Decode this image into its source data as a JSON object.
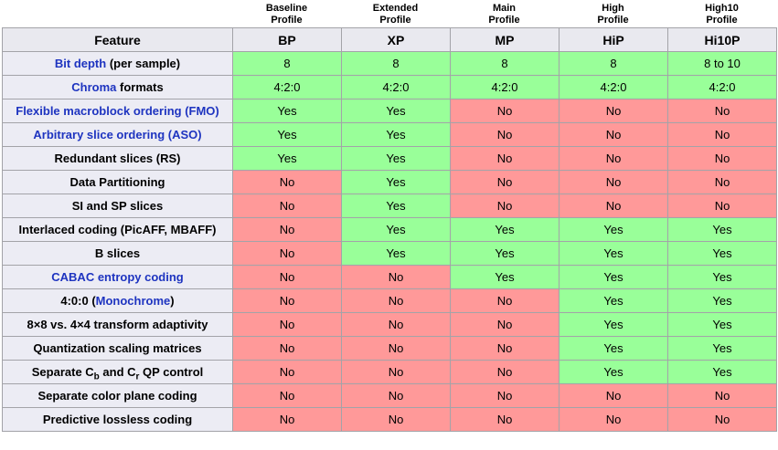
{
  "colors": {
    "yes_bg": "#99ff99",
    "no_bg": "#ff9999",
    "header_bg": "#e9e9ef",
    "feature_bg": "#ececf4",
    "border": "#a3a3a8",
    "link": "#1e34c0"
  },
  "column_labels": [
    {
      "line1": "Baseline",
      "line2": "Profile"
    },
    {
      "line1": "Extended",
      "line2": "Profile"
    },
    {
      "line1": "Main",
      "line2": "Profile"
    },
    {
      "line1": "High",
      "line2": "Profile"
    },
    {
      "line1": "High10",
      "line2": "Profile"
    }
  ],
  "table": {
    "header": {
      "feature": "Feature",
      "columns": [
        "BP",
        "XP",
        "MP",
        "HiP",
        "Hi10P"
      ]
    },
    "rows": [
      {
        "feature": [
          {
            "text": "Bit depth",
            "link": true
          },
          {
            "text": " (per sample)"
          }
        ],
        "values": [
          "8",
          "8",
          "8",
          "8",
          "8 to 10"
        ],
        "kinds": [
          "yes",
          "yes",
          "yes",
          "yes",
          "yes"
        ]
      },
      {
        "feature": [
          {
            "text": "Chroma",
            "link": true
          },
          {
            "text": " formats"
          }
        ],
        "values": [
          "4:2:0",
          "4:2:0",
          "4:2:0",
          "4:2:0",
          "4:2:0"
        ],
        "kinds": [
          "yes",
          "yes",
          "yes",
          "yes",
          "yes"
        ]
      },
      {
        "feature": [
          {
            "text": "Flexible macroblock ordering (FMO)",
            "link": true
          }
        ],
        "values": [
          "Yes",
          "Yes",
          "No",
          "No",
          "No"
        ],
        "kinds": [
          "yes",
          "yes",
          "no",
          "no",
          "no"
        ]
      },
      {
        "feature": [
          {
            "text": "Arbitrary slice ordering (ASO)",
            "link": true
          }
        ],
        "values": [
          "Yes",
          "Yes",
          "No",
          "No",
          "No"
        ],
        "kinds": [
          "yes",
          "yes",
          "no",
          "no",
          "no"
        ]
      },
      {
        "feature": [
          {
            "text": "Redundant slices (RS)"
          }
        ],
        "values": [
          "Yes",
          "Yes",
          "No",
          "No",
          "No"
        ],
        "kinds": [
          "yes",
          "yes",
          "no",
          "no",
          "no"
        ]
      },
      {
        "feature": [
          {
            "text": "Data Partitioning"
          }
        ],
        "values": [
          "No",
          "Yes",
          "No",
          "No",
          "No"
        ],
        "kinds": [
          "no",
          "yes",
          "no",
          "no",
          "no"
        ]
      },
      {
        "feature": [
          {
            "text": "SI and SP slices"
          }
        ],
        "values": [
          "No",
          "Yes",
          "No",
          "No",
          "No"
        ],
        "kinds": [
          "no",
          "yes",
          "no",
          "no",
          "no"
        ]
      },
      {
        "feature": [
          {
            "text": "Interlaced coding (PicAFF, MBAFF)"
          }
        ],
        "values": [
          "No",
          "Yes",
          "Yes",
          "Yes",
          "Yes"
        ],
        "kinds": [
          "no",
          "yes",
          "yes",
          "yes",
          "yes"
        ]
      },
      {
        "feature": [
          {
            "text": "B slices"
          }
        ],
        "values": [
          "No",
          "Yes",
          "Yes",
          "Yes",
          "Yes"
        ],
        "kinds": [
          "no",
          "yes",
          "yes",
          "yes",
          "yes"
        ]
      },
      {
        "feature": [
          {
            "text": "CABAC entropy coding",
            "link": true
          }
        ],
        "values": [
          "No",
          "No",
          "Yes",
          "Yes",
          "Yes"
        ],
        "kinds": [
          "no",
          "no",
          "yes",
          "yes",
          "yes"
        ]
      },
      {
        "feature": [
          {
            "text": "4:0:0 ("
          },
          {
            "text": "Monochrome",
            "link": true
          },
          {
            "text": ")"
          }
        ],
        "values": [
          "No",
          "No",
          "No",
          "Yes",
          "Yes"
        ],
        "kinds": [
          "no",
          "no",
          "no",
          "yes",
          "yes"
        ]
      },
      {
        "feature": [
          {
            "text": "8×8 vs. 4×4 transform adaptivity"
          }
        ],
        "values": [
          "No",
          "No",
          "No",
          "Yes",
          "Yes"
        ],
        "kinds": [
          "no",
          "no",
          "no",
          "yes",
          "yes"
        ]
      },
      {
        "feature": [
          {
            "text": "Quantization scaling matrices"
          }
        ],
        "values": [
          "No",
          "No",
          "No",
          "Yes",
          "Yes"
        ],
        "kinds": [
          "no",
          "no",
          "no",
          "yes",
          "yes"
        ]
      },
      {
        "feature": [
          {
            "text": "Separate C"
          },
          {
            "text": "b",
            "sub": true
          },
          {
            "text": " and C"
          },
          {
            "text": "r",
            "sub": true
          },
          {
            "text": " QP control"
          }
        ],
        "values": [
          "No",
          "No",
          "No",
          "Yes",
          "Yes"
        ],
        "kinds": [
          "no",
          "no",
          "no",
          "yes",
          "yes"
        ]
      },
      {
        "feature": [
          {
            "text": "Separate color plane coding"
          }
        ],
        "values": [
          "No",
          "No",
          "No",
          "No",
          "No"
        ],
        "kinds": [
          "no",
          "no",
          "no",
          "no",
          "no"
        ]
      },
      {
        "feature": [
          {
            "text": "Predictive lossless coding"
          }
        ],
        "values": [
          "No",
          "No",
          "No",
          "No",
          "No"
        ],
        "kinds": [
          "no",
          "no",
          "no",
          "no",
          "no"
        ]
      }
    ]
  },
  "chart_data": {
    "type": "table",
    "columns": [
      "Feature",
      "BP (Baseline Profile)",
      "XP (Extended Profile)",
      "MP (Main Profile)",
      "HiP (High Profile)",
      "Hi10P (High10 Profile)"
    ],
    "rows": [
      [
        "Bit depth (per sample)",
        "8",
        "8",
        "8",
        "8",
        "8 to 10"
      ],
      [
        "Chroma formats",
        "4:2:0",
        "4:2:0",
        "4:2:0",
        "4:2:0",
        "4:2:0"
      ],
      [
        "Flexible macroblock ordering (FMO)",
        "Yes",
        "Yes",
        "No",
        "No",
        "No"
      ],
      [
        "Arbitrary slice ordering (ASO)",
        "Yes",
        "Yes",
        "No",
        "No",
        "No"
      ],
      [
        "Redundant slices (RS)",
        "Yes",
        "Yes",
        "No",
        "No",
        "No"
      ],
      [
        "Data Partitioning",
        "No",
        "Yes",
        "No",
        "No",
        "No"
      ],
      [
        "SI and SP slices",
        "No",
        "Yes",
        "No",
        "No",
        "No"
      ],
      [
        "Interlaced coding (PicAFF, MBAFF)",
        "No",
        "Yes",
        "Yes",
        "Yes",
        "Yes"
      ],
      [
        "B slices",
        "No",
        "Yes",
        "Yes",
        "Yes",
        "Yes"
      ],
      [
        "CABAC entropy coding",
        "No",
        "No",
        "Yes",
        "Yes",
        "Yes"
      ],
      [
        "4:0:0 (Monochrome)",
        "No",
        "No",
        "No",
        "Yes",
        "Yes"
      ],
      [
        "8×8 vs. 4×4 transform adaptivity",
        "No",
        "No",
        "No",
        "Yes",
        "Yes"
      ],
      [
        "Quantization scaling matrices",
        "No",
        "No",
        "No",
        "Yes",
        "Yes"
      ],
      [
        "Separate Cb and Cr QP control",
        "No",
        "No",
        "No",
        "Yes",
        "Yes"
      ],
      [
        "Separate color plane coding",
        "No",
        "No",
        "No",
        "No",
        "No"
      ],
      [
        "Predictive lossless coding",
        "No",
        "No",
        "No",
        "No",
        "No"
      ]
    ],
    "cell_color_coding": {
      "Yes/supported": "#99ff99",
      "No/unsupported": "#ff9999"
    }
  }
}
